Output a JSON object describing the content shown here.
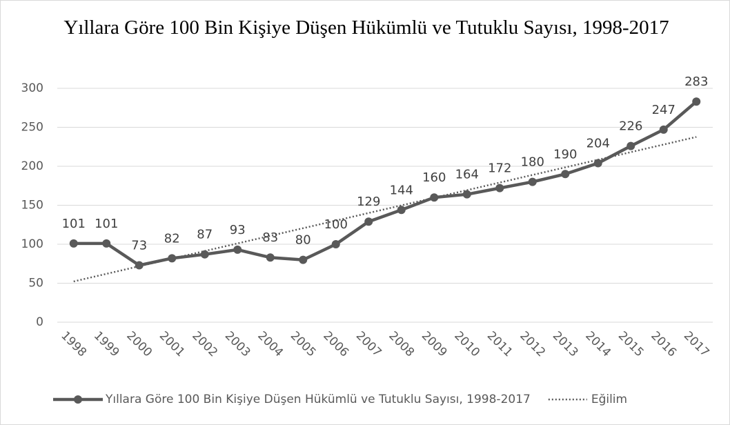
{
  "chart_data": {
    "type": "line",
    "title": "Yıllara Göre 100 Bin Kişiye Düşen Hükümlü ve Tutuklu Sayısı, 1998-2017",
    "categories": [
      "1998",
      "1999",
      "2000",
      "2001",
      "2002",
      "2003",
      "2004",
      "2005",
      "2006",
      "2007",
      "2008",
      "2009",
      "2010",
      "2011",
      "2012",
      "2013",
      "2014",
      "2015",
      "2016",
      "2017"
    ],
    "series": [
      {
        "name": "Yıllara Göre 100 Bin Kişiye Düşen Hükümlü ve Tutuklu Sayısı, 1998-2017",
        "color": "#595959",
        "values": [
          101,
          101,
          73,
          82,
          87,
          93,
          83,
          80,
          100,
          129,
          144,
          160,
          164,
          172,
          180,
          190,
          204,
          226,
          247,
          283
        ]
      }
    ],
    "trendline": {
      "name": "Eğilim",
      "color": "#595959"
    },
    "ylim": [
      0,
      300
    ],
    "yticks": [
      0,
      50,
      100,
      150,
      200,
      250,
      300
    ],
    "grid": true,
    "legend": "bottom"
  }
}
